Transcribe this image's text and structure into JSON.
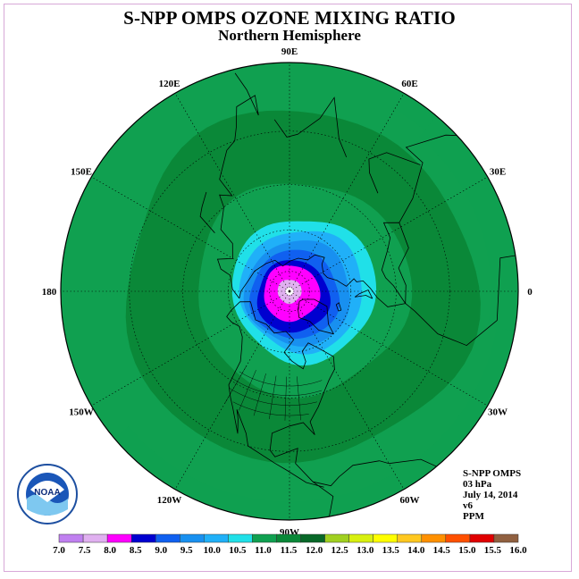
{
  "title": "S-NPP OMPS OZONE MIXING RATIO",
  "subtitle": "Northern Hemisphere",
  "longitude_labels": [
    {
      "label": "90E",
      "lon": 90
    },
    {
      "label": "60E",
      "lon": 60
    },
    {
      "label": "30E",
      "lon": 30
    },
    {
      "label": "0",
      "lon": 0
    },
    {
      "label": "30W",
      "lon": -30
    },
    {
      "label": "60W",
      "lon": -60
    },
    {
      "label": "90W",
      "lon": -90
    },
    {
      "label": "120W",
      "lon": -120
    },
    {
      "label": "150W",
      "lon": -150
    },
    {
      "label": "180",
      "lon": 180
    },
    {
      "label": "150E",
      "lon": 150
    },
    {
      "label": "120E",
      "lon": 120
    }
  ],
  "info": {
    "instrument": "S-NPP OMPS",
    "level": "03 hPa",
    "date": "July 14, 2014",
    "version": "v6",
    "units": "PPM"
  },
  "logo": {
    "text": "NOAA",
    "icon": "noaa-logo-icon"
  },
  "colorbar": {
    "ticks": [
      "7.0",
      "7.5",
      "8.0",
      "8.5",
      "9.0",
      "9.5",
      "10.0",
      "10.5",
      "11.0",
      "11.5",
      "12.0",
      "12.5",
      "13.0",
      "13.5",
      "14.0",
      "14.5",
      "15.0",
      "15.5",
      "16.0"
    ],
    "colors": [
      "#c080f0",
      "#e0b0f0",
      "#ff00ff",
      "#0000d0",
      "#1060f0",
      "#1890f0",
      "#20b0f8",
      "#20e0e8",
      "#10a050",
      "#0a8838",
      "#086828",
      "#a0d020",
      "#d8f010",
      "#ffff00",
      "#ffc820",
      "#ff9000",
      "#ff5000",
      "#e00000",
      "#906040"
    ]
  },
  "chart_data": {
    "type": "heatmap",
    "title": "S-NPP OMPS OZONE MIXING RATIO",
    "subtitle": "Northern Hemisphere",
    "units": "PPM",
    "level": "03 hPa",
    "date": "July 14, 2014",
    "projection": "polar-stereographic-north",
    "levels": [
      7.0,
      7.5,
      8.0,
      8.5,
      9.0,
      9.5,
      10.0,
      10.5,
      11.0,
      11.5,
      12.0,
      12.5,
      13.0,
      13.5,
      14.0,
      14.5,
      15.0,
      15.5,
      16.0
    ],
    "zonal_rings": [
      {
        "lat_min": 88,
        "value_range": [
          7.0,
          7.5
        ]
      },
      {
        "lat_min": 84,
        "value_range": [
          7.5,
          8.0
        ]
      },
      {
        "lat_min": 76,
        "value_range": [
          8.0,
          8.5
        ]
      },
      {
        "lat_min": 72,
        "value_range": [
          8.5,
          9.0
        ]
      },
      {
        "lat_min": 68,
        "value_range": [
          9.0,
          9.5
        ]
      },
      {
        "lat_min": 64,
        "value_range": [
          9.5,
          10.0
        ]
      },
      {
        "lat_min": 60,
        "value_range": [
          10.0,
          10.5
        ]
      },
      {
        "lat_min": 55,
        "value_range": [
          10.5,
          11.0
        ]
      },
      {
        "lat_min": 40,
        "value_range": [
          11.0,
          11.5
        ]
      },
      {
        "lat_min": 15,
        "value_range": [
          11.5,
          12.0
        ]
      },
      {
        "lat_min": 0,
        "value_range": [
          11.0,
          11.5
        ]
      }
    ]
  }
}
